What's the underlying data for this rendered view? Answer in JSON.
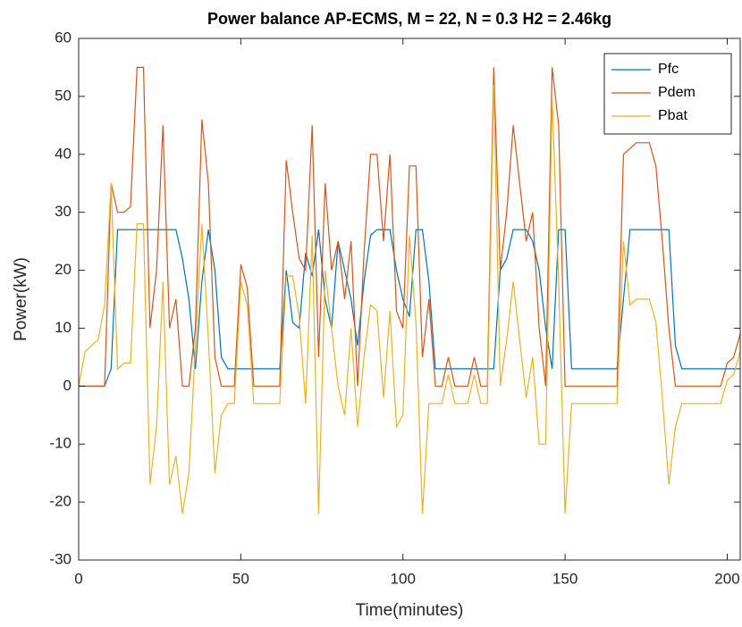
{
  "chart_data": {
    "type": "line",
    "title": "Power balance AP-ECMS, M = 22, N = 0.3 H2 = 2.46kg",
    "xlabel": "Time(minutes)",
    "ylabel": "Power(kW)",
    "x": [
      0,
      2,
      4,
      6,
      8,
      10,
      12,
      14,
      16,
      18,
      20,
      22,
      24,
      26,
      28,
      30,
      32,
      34,
      36,
      38,
      40,
      42,
      44,
      46,
      48,
      50,
      52,
      54,
      56,
      58,
      60,
      62,
      64,
      66,
      68,
      70,
      72,
      74,
      76,
      78,
      80,
      82,
      84,
      86,
      88,
      90,
      92,
      94,
      96,
      98,
      100,
      102,
      104,
      106,
      108,
      110,
      112,
      114,
      116,
      118,
      120,
      122,
      124,
      126,
      128,
      130,
      132,
      134,
      136,
      138,
      140,
      142,
      144,
      146,
      148,
      150,
      152,
      154,
      156,
      158,
      160,
      162,
      164,
      166,
      168,
      170,
      172,
      174,
      176,
      178,
      180,
      182,
      184,
      186,
      188,
      190,
      192,
      194,
      196,
      198,
      200,
      202,
      204
    ],
    "series": [
      {
        "name": "Pfc",
        "color": "#0072BD",
        "values": [
          0,
          0,
          0,
          0,
          0,
          3,
          27,
          27,
          27,
          27,
          27,
          27,
          27,
          27,
          27,
          27,
          22,
          15,
          3,
          18,
          27,
          20,
          5,
          3,
          3,
          3,
          3,
          3,
          3,
          3,
          3,
          3,
          20,
          11,
          10,
          23,
          19,
          27,
          15,
          10,
          25,
          20,
          15,
          7,
          18,
          26,
          27,
          27,
          27,
          20,
          15,
          12,
          27,
          27,
          18,
          3,
          3,
          3,
          3,
          3,
          3,
          3,
          3,
          3,
          3,
          20,
          22,
          27,
          27,
          27,
          25,
          20,
          10,
          3,
          27,
          27,
          3,
          3,
          3,
          3,
          3,
          3,
          3,
          3,
          15,
          27,
          27,
          27,
          27,
          27,
          27,
          27,
          7,
          3,
          3,
          3,
          3,
          3,
          3,
          3,
          3,
          3,
          3
        ]
      },
      {
        "name": "Pdem",
        "color": "#D95319",
        "values": [
          0,
          0,
          0,
          0,
          0,
          35,
          30,
          30,
          31,
          55,
          55,
          10,
          20,
          45,
          10,
          15,
          0,
          0,
          10,
          46,
          35,
          5,
          0,
          0,
          0,
          21,
          17,
          0,
          0,
          0,
          0,
          0,
          39,
          30,
          22,
          20,
          45,
          5,
          35,
          20,
          25,
          15,
          25,
          0,
          23,
          40,
          40,
          25,
          40,
          13,
          10,
          38,
          38,
          5,
          15,
          0,
          0,
          5,
          0,
          0,
          0,
          5,
          0,
          0,
          55,
          20,
          30,
          45,
          35,
          25,
          30,
          10,
          0,
          55,
          45,
          0,
          0,
          0,
          0,
          0,
          0,
          0,
          0,
          0,
          40,
          41,
          42,
          42,
          42,
          38,
          25,
          10,
          0,
          0,
          0,
          0,
          0,
          0,
          0,
          0,
          4,
          5,
          9
        ]
      },
      {
        "name": "Pbat",
        "color": "#EDB120",
        "values": [
          0,
          6,
          7,
          8,
          14,
          35,
          3,
          4,
          4,
          28,
          28,
          -17,
          -7,
          18,
          -17,
          -12,
          -22,
          -15,
          7,
          28,
          8,
          -15,
          -5,
          -3,
          -3,
          18,
          14,
          -3,
          -3,
          -3,
          -3,
          -3,
          19,
          19,
          12,
          -3,
          26,
          -22,
          20,
          10,
          0,
          -5,
          10,
          -7,
          5,
          14,
          13,
          -2,
          13,
          -7,
          -5,
          26,
          11,
          -22,
          -3,
          -3,
          -3,
          2,
          -3,
          -3,
          -3,
          2,
          -3,
          -3,
          52,
          0,
          8,
          18,
          8,
          -2,
          5,
          -10,
          -10,
          50,
          18,
          -22,
          -3,
          -3,
          -3,
          -3,
          -3,
          -3,
          -3,
          -3,
          25,
          14,
          15,
          15,
          15,
          11,
          -2,
          -17,
          -7,
          -3,
          -3,
          -3,
          -3,
          -3,
          -3,
          -3,
          1,
          2,
          6
        ]
      }
    ],
    "xlim": [
      0,
      204
    ],
    "ylim": [
      -30,
      60
    ],
    "xticks": [
      0,
      50,
      100,
      150,
      200
    ],
    "yticks": [
      -30,
      -20,
      -10,
      0,
      10,
      20,
      30,
      40,
      50,
      60
    ],
    "legend": "northeast"
  }
}
